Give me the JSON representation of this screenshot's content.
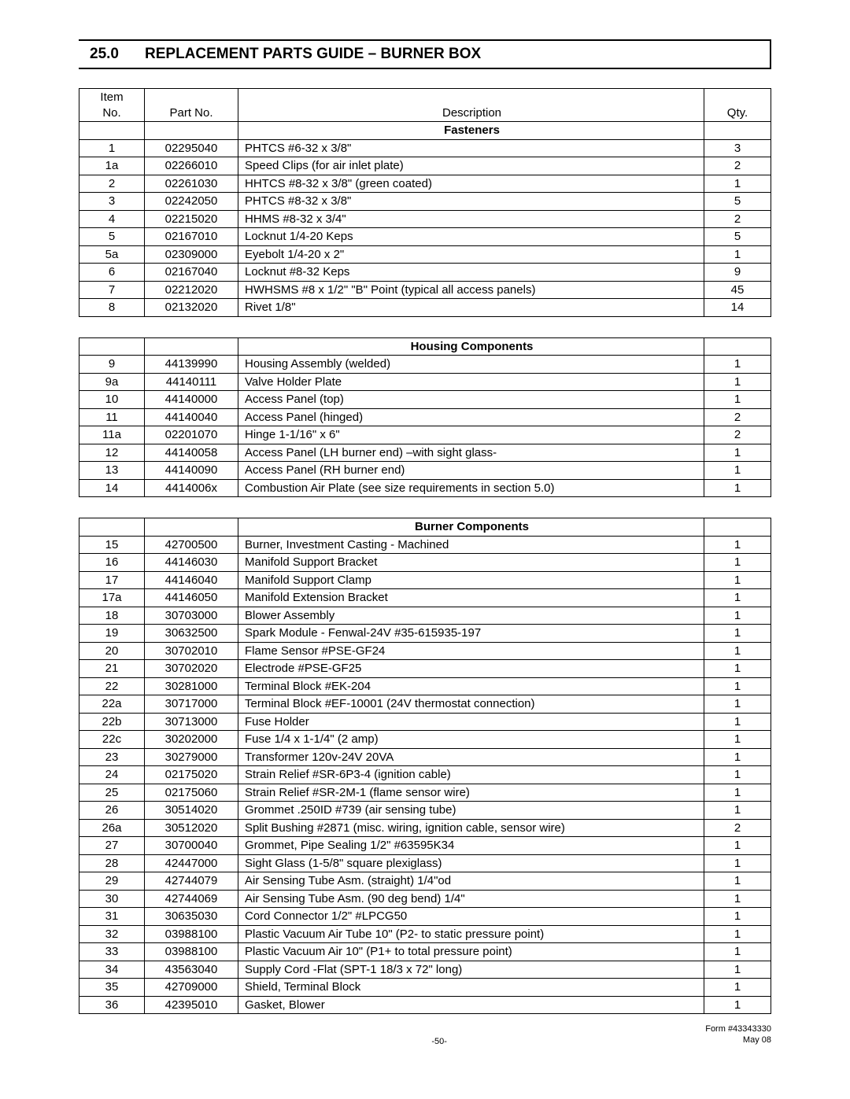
{
  "title": {
    "number": "25.0",
    "text": "REPLACEMENT PARTS GUIDE – BURNER BOX"
  },
  "columns": {
    "item1": "Item",
    "item2": "No.",
    "part": "Part No.",
    "desc": "Description",
    "qty": "Qty."
  },
  "sections": [
    {
      "name": "Fasteners",
      "show_header": true,
      "rows": [
        {
          "item": "1",
          "part": "02295040",
          "desc": "PHTCS #6-32 x 3/8\"",
          "qty": "3"
        },
        {
          "item": "1a",
          "part": "02266010",
          "desc": "Speed Clips (for air inlet plate)",
          "qty": "2"
        },
        {
          "item": "2",
          "part": "02261030",
          "desc": "HHTCS #8-32 x 3/8\"  (green coated)",
          "qty": "1"
        },
        {
          "item": "3",
          "part": "02242050",
          "desc": "PHTCS #8-32 x 3/8\"",
          "qty": "5"
        },
        {
          "item": "4",
          "part": "02215020",
          "desc": "HHMS #8-32 x 3/4\"",
          "qty": "2"
        },
        {
          "item": "5",
          "part": "02167010",
          "desc": "Locknut 1/4-20 Keps",
          "qty": "5"
        },
        {
          "item": "5a",
          "part": "02309000",
          "desc": "Eyebolt 1/4-20 x 2\"",
          "qty": "1"
        },
        {
          "item": "6",
          "part": "02167040",
          "desc": "Locknut #8-32 Keps",
          "qty": "9"
        },
        {
          "item": "7",
          "part": "02212020",
          "desc": "HWHSMS #8 x 1/2\" \"B\" Point (typical all access panels)",
          "qty": "45"
        },
        {
          "item": "8",
          "part": "02132020",
          "desc": "Rivet 1/8\"",
          "qty": "14"
        }
      ]
    },
    {
      "name": "Housing Components",
      "show_header": false,
      "rows": [
        {
          "item": "9",
          "part": "44139990",
          "desc": "Housing Assembly (welded)",
          "qty": "1"
        },
        {
          "item": "9a",
          "part": "44140111",
          "desc": "Valve Holder Plate",
          "qty": "1"
        },
        {
          "item": "10",
          "part": "44140000",
          "desc": "Access Panel (top)",
          "qty": "1"
        },
        {
          "item": "11",
          "part": "44140040",
          "desc": "Access Panel (hinged)",
          "qty": "2"
        },
        {
          "item": "11a",
          "part": "02201070",
          "desc": "Hinge 1-1/16\" x 6\"",
          "qty": "2"
        },
        {
          "item": "12",
          "part": "44140058",
          "desc": "Access Panel (LH burner end) –with sight glass-",
          "qty": "1"
        },
        {
          "item": "13",
          "part": "44140090",
          "desc": "Access Panel (RH burner end)",
          "qty": "1"
        },
        {
          "item": "14",
          "part": "4414006x",
          "desc": "Combustion Air Plate (see size requirements in section 5.0)",
          "qty": "1"
        }
      ]
    },
    {
      "name": "Burner Components",
      "show_header": false,
      "rows": [
        {
          "item": "15",
          "part": "42700500",
          "desc": "Burner, Investment Casting -  Machined",
          "qty": "1"
        },
        {
          "item": "16",
          "part": "44146030",
          "desc": "Manifold Support Bracket",
          "qty": "1"
        },
        {
          "item": "17",
          "part": "44146040",
          "desc": "Manifold Support Clamp",
          "qty": "1"
        },
        {
          "item": "17a",
          "part": "44146050",
          "desc": "Manifold Extension Bracket",
          "qty": "1"
        },
        {
          "item": "18",
          "part": "30703000",
          "desc": "Blower Assembly",
          "qty": "1"
        },
        {
          "item": "19",
          "part": "30632500",
          "desc": "Spark Module - Fenwal-24V #35-615935-197",
          "qty": "1"
        },
        {
          "item": "20",
          "part": "30702010",
          "desc": "Flame Sensor #PSE-GF24",
          "qty": "1"
        },
        {
          "item": "21",
          "part": "30702020",
          "desc": "Electrode #PSE-GF25",
          "qty": "1"
        },
        {
          "item": "22",
          "part": "30281000",
          "desc": "Terminal Block #EK-204",
          "qty": "1"
        },
        {
          "item": "22a",
          "part": "30717000",
          "desc": "Terminal Block #EF-10001  (24V thermostat connection)",
          "qty": "1"
        },
        {
          "item": "22b",
          "part": "30713000",
          "desc": "Fuse Holder",
          "qty": "1"
        },
        {
          "item": "22c",
          "part": "30202000",
          "desc": "Fuse 1/4 x 1-1/4\"  (2 amp)",
          "qty": "1"
        },
        {
          "item": "23",
          "part": "30279000",
          "desc": "Transformer 120v-24V  20VA",
          "qty": "1"
        },
        {
          "item": "24",
          "part": "02175020",
          "desc": "Strain Relief #SR-6P3-4 (ignition cable)",
          "qty": "1"
        },
        {
          "item": "25",
          "part": "02175060",
          "desc": "Strain Relief #SR-2M-1 (flame sensor wire)",
          "qty": "1"
        },
        {
          "item": "26",
          "part": "30514020",
          "desc": "Grommet .250ID #739 (air sensing tube)",
          "qty": "1"
        },
        {
          "item": "26a",
          "part": "30512020",
          "desc": "Split Bushing #2871 (misc. wiring, ignition cable, sensor wire)",
          "qty": "2"
        },
        {
          "item": "27",
          "part": "30700040",
          "desc": "Grommet, Pipe Sealing 1/2\"   #63595K34",
          "qty": "1"
        },
        {
          "item": "28",
          "part": "42447000",
          "desc": "Sight Glass (1-5/8\" square plexiglass)",
          "qty": "1"
        },
        {
          "item": "29",
          "part": "42744079",
          "desc": "Air Sensing Tube Asm. (straight) 1/4\"od",
          "qty": "1"
        },
        {
          "item": "30",
          "part": "42744069",
          "desc": "Air Sensing Tube Asm. (90 deg bend) 1/4\"",
          "qty": "1"
        },
        {
          "item": "31",
          "part": "30635030",
          "desc": "Cord Connector 1/2\" #LPCG50",
          "qty": "1"
        },
        {
          "item": "32",
          "part": "03988100",
          "desc": "Plastic Vacuum Air Tube  10\"  (P2-  to static pressure point)",
          "qty": "1"
        },
        {
          "item": "33",
          "part": "03988100",
          "desc": "Plastic Vacuum Air 10\" (P1+ to total pressure point)",
          "qty": "1"
        },
        {
          "item": "34",
          "part": "43563040",
          "desc": "Supply Cord -Flat  (SPT-1 18/3 x 72\" long)",
          "qty": "1"
        },
        {
          "item": "35",
          "part": "42709000",
          "desc": "Shield, Terminal Block",
          "qty": "1"
        },
        {
          "item": "36",
          "part": "42395010",
          "desc": "Gasket, Blower",
          "qty": "1"
        }
      ]
    }
  ],
  "footer": {
    "page": "-50-",
    "form": "Form #43343330",
    "date": "May 08"
  },
  "style": {
    "border_color": "#000000",
    "bg_color": "#ffffff",
    "font_size_body": 15,
    "font_size_title": 19,
    "font_size_footer": 11
  }
}
